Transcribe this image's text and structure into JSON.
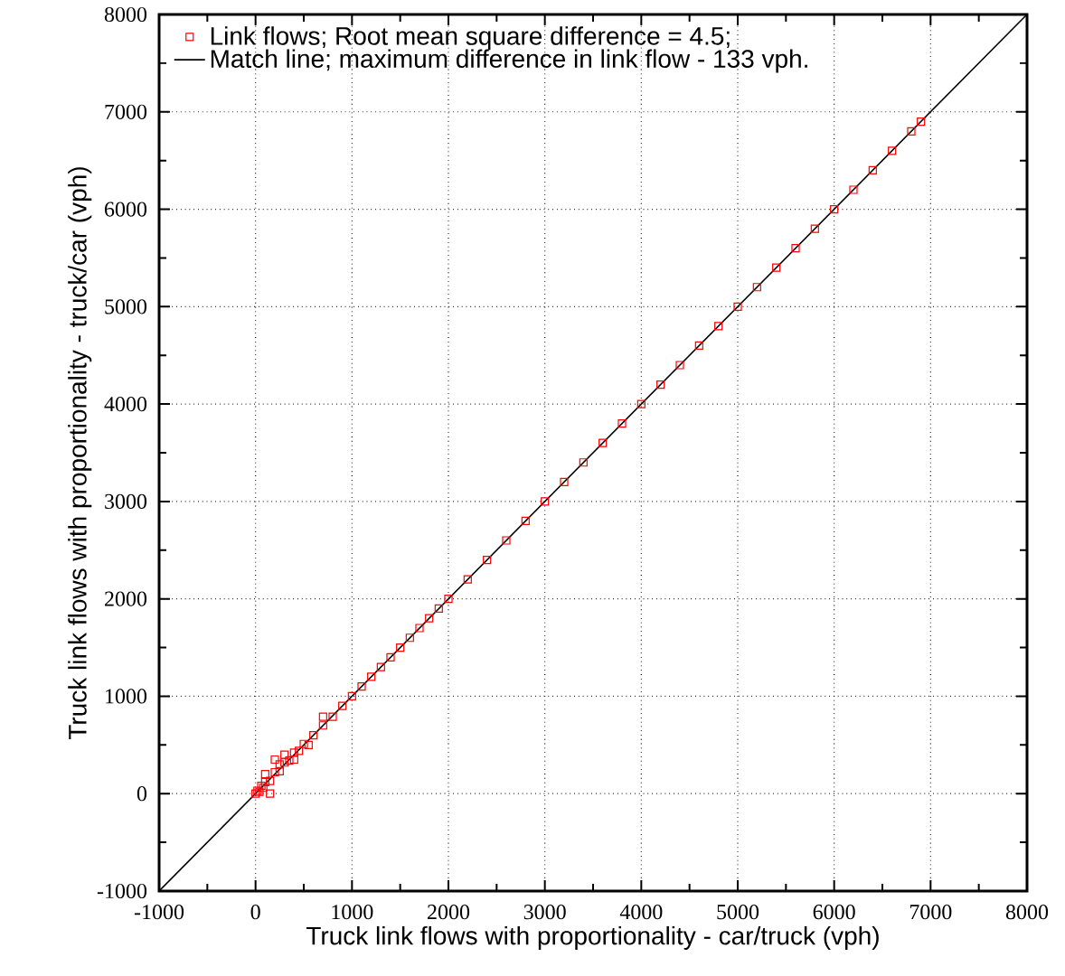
{
  "chart_data": {
    "type": "scatter",
    "xlabel": "Truck link flows with proportionality - car/truck (vph)",
    "ylabel": "Truck link flows with proportionality - truck/car (vph)",
    "xlim": [
      -1000,
      8000
    ],
    "ylim": [
      -1000,
      8000
    ],
    "xticks": [
      -1000,
      0,
      1000,
      2000,
      3000,
      4000,
      5000,
      6000,
      7000,
      8000
    ],
    "yticks": [
      -1000,
      0,
      1000,
      2000,
      3000,
      4000,
      5000,
      6000,
      7000,
      8000
    ],
    "grid": true,
    "legend": "top left",
    "marker": "square",
    "series": [
      {
        "name": "Link flows; Root mean square difference = 4.5;",
        "color": "#ff0000",
        "x": [
          0,
          20,
          40,
          60,
          80,
          100,
          150,
          200,
          250,
          300,
          350,
          400,
          450,
          500,
          600,
          700,
          800,
          900,
          1000,
          1100,
          1200,
          1300,
          1400,
          1500,
          1600,
          1700,
          1800,
          1900,
          2000,
          2200,
          2400,
          2600,
          2800,
          3000,
          3200,
          3400,
          3600,
          3800,
          4000,
          4200,
          4400,
          4600,
          4800,
          5000,
          5200,
          5400,
          5600,
          5800,
          6000,
          6200,
          6400,
          6600,
          6800,
          6900,
          200,
          300,
          700,
          100,
          150,
          250,
          400,
          550
        ],
        "values": [
          0,
          30,
          20,
          80,
          60,
          120,
          130,
          220,
          230,
          320,
          340,
          420,
          440,
          510,
          600,
          700,
          790,
          900,
          1000,
          1100,
          1200,
          1300,
          1400,
          1500,
          1600,
          1700,
          1800,
          1900,
          2000,
          2200,
          2400,
          2600,
          2800,
          3000,
          3200,
          3400,
          3600,
          3800,
          4000,
          4200,
          4400,
          4600,
          4800,
          5000,
          5200,
          5400,
          5600,
          5800,
          6000,
          6200,
          6400,
          6600,
          6800,
          6900,
          350,
          400,
          790,
          200,
          0,
          300,
          350,
          500
        ]
      },
      {
        "name": "Match line; maximum difference in link flow - 133 vph.",
        "color": "#000000",
        "type": "line",
        "marker": "none",
        "line_style": "solid",
        "x": [
          -1000,
          8000
        ],
        "values": [
          -1000,
          8000
        ]
      }
    ]
  }
}
